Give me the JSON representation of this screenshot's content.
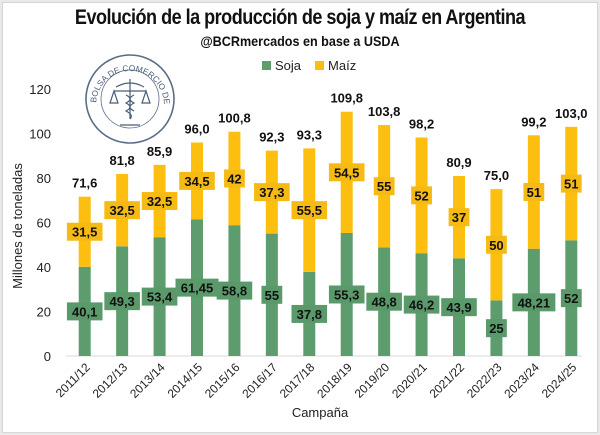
{
  "header": {
    "title": "Evolución de la producción de soja y maíz en Argentina",
    "subtitle": "@BCRmercados en base a USDA",
    "logo_text": "BOLSA DE COMERCIO DE ROSARIO"
  },
  "colors": {
    "soja": "#5d9c6c",
    "maiz": "#fdbf0f",
    "label_bg_soja": "#5a9a6a",
    "label_bg_maiz": "#f6ba14",
    "axis_text": "#222222",
    "baseline": "#d9d9d9"
  },
  "chart_data": {
    "type": "bar",
    "stacked": true,
    "title": "Evolución de la producción de soja y maíz en Argentina",
    "subtitle": "@BCRmercados en base a USDA",
    "xlabel": "Campaña",
    "ylabel": "Millones de toneladas",
    "ylim": [
      0,
      120
    ],
    "yticks": [
      0,
      20,
      40,
      60,
      80,
      100,
      120
    ],
    "ytick_labels": [
      "0",
      "20",
      "40",
      "60",
      "80",
      "100",
      "120"
    ],
    "grid": false,
    "legend_position": "top-center",
    "categories": [
      "2011/12",
      "2012/13",
      "2013/14",
      "2014/15",
      "2015/16",
      "2016/17",
      "2017/18",
      "2018/19",
      "2019/20",
      "2020/21",
      "2021/22",
      "2022/23",
      "2023/24",
      "2024/25"
    ],
    "series": [
      {
        "name": "Soja",
        "values": [
          40.1,
          49.3,
          53.4,
          61.45,
          58.8,
          55,
          37.8,
          55.3,
          48.8,
          46.2,
          43.9,
          25,
          48.21,
          52
        ],
        "labels": [
          "40,1",
          "49,3",
          "53,4",
          "61,45",
          "58,8",
          "55",
          "37,8",
          "55,3",
          "48,8",
          "46,2",
          "43,9",
          "25",
          "48,21",
          "52"
        ]
      },
      {
        "name": "Maíz",
        "values": [
          31.5,
          32.5,
          32.5,
          34.5,
          42,
          37.3,
          55.5,
          54.5,
          55,
          52,
          37,
          50,
          51,
          51
        ],
        "labels": [
          "31,5",
          "32,5",
          "32,5",
          "34,5",
          "42",
          "37,3",
          "55,5",
          "54,5",
          "55",
          "52",
          "37",
          "50",
          "51",
          "51"
        ]
      }
    ],
    "totals": [
      71.6,
      81.8,
      85.9,
      96.0,
      100.8,
      92.3,
      93.3,
      109.8,
      103.8,
      98.2,
      80.9,
      75.0,
      99.2,
      103.0
    ],
    "total_labels": [
      "71,6",
      "81,8",
      "85,9",
      "96,0",
      "100,8",
      "92,3",
      "93,3",
      "109,8",
      "103,8",
      "98,2",
      "80,9",
      "75,0",
      "99,2",
      "103,0"
    ]
  }
}
